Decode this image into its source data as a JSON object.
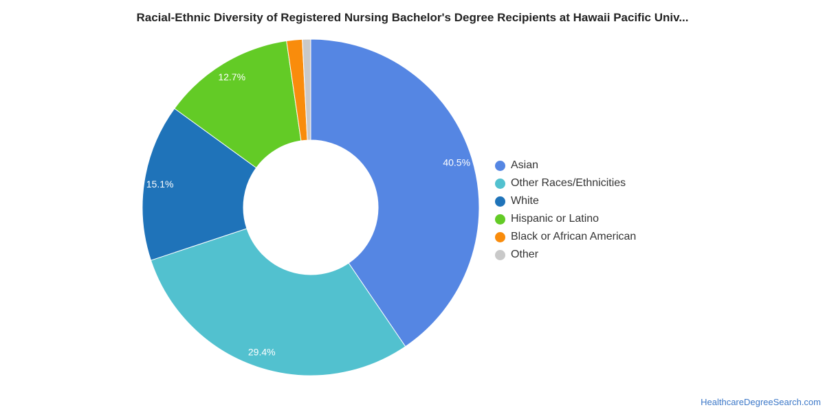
{
  "chart_data": {
    "type": "pie",
    "title": "Racial-Ethnic Diversity of Registered Nursing Bachelor's Degree Recipients at Hawaii Pacific Univ...",
    "donut": true,
    "start_angle_deg": 0,
    "categories": [
      "Asian",
      "Other Races/Ethnicities",
      "White",
      "Hispanic or Latino",
      "Black or African American",
      "Other"
    ],
    "values": [
      40.5,
      29.4,
      15.1,
      12.7,
      1.5,
      0.8
    ],
    "data_labels": [
      "40.5%",
      "29.4%",
      "15.1%",
      "12.7%",
      "",
      ""
    ],
    "colors": [
      "#5586e3",
      "#52c1cf",
      "#1f73b9",
      "#63cb26",
      "#f98c0c",
      "#c9c9c9"
    ],
    "legend_position": "right"
  },
  "footer": {
    "source": "HealthcareDegreeSearch.com"
  }
}
